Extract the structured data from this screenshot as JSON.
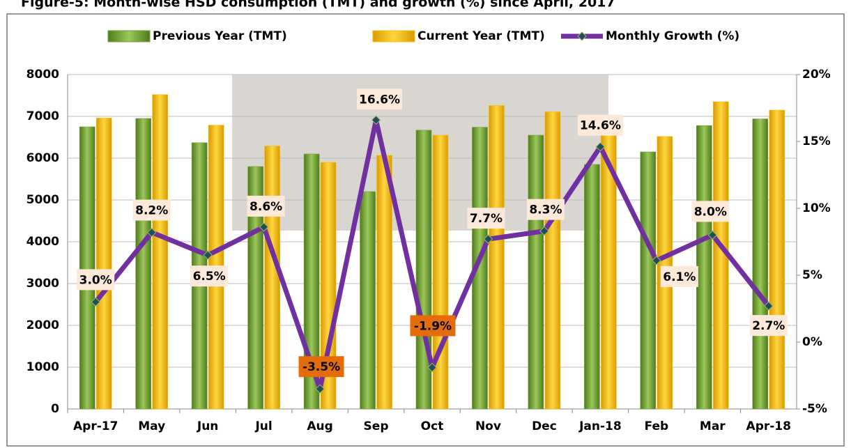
{
  "chart_data": {
    "type": "bar_line",
    "title": "Figure-5: Month-wise HSD consumption (TMT) and growth (%) since April, 2017",
    "categories": [
      "Apr-17",
      "May",
      "Jun",
      "Jul",
      "Aug",
      "Sep",
      "Oct",
      "Nov",
      "Dec",
      "Jan-18",
      "Feb",
      "Mar",
      "Apr-18"
    ],
    "series": [
      {
        "name": "Previous Year (TMT)",
        "color": "#77a33a",
        "values": [
          6750,
          6950,
          6370,
          5800,
          6100,
          5200,
          6670,
          6740,
          6550,
          5850,
          6150,
          6780,
          6940
        ]
      },
      {
        "name": "Current Year (TMT)",
        "color": "#ffc000",
        "values": [
          6960,
          7520,
          6790,
          6290,
          5900,
          6070,
          6550,
          7260,
          7110,
          6690,
          6520,
          7350,
          7150
        ]
      },
      {
        "name": "Monthly Growth (%)",
        "color": "#7030a0",
        "axis": "y2",
        "type": "line",
        "values": [
          3.0,
          8.2,
          6.5,
          8.6,
          -3.5,
          16.6,
          -1.9,
          7.7,
          8.3,
          14.6,
          6.1,
          8.0,
          2.7
        ],
        "value_labels": [
          "3.0%",
          "8.2%",
          "6.5%",
          "8.6%",
          "-3.5%",
          "16.6%",
          "-1.9%",
          "7.7%",
          "8.3%",
          "14.6%",
          "6.1%",
          "8.0%",
          "2.7%"
        ]
      }
    ],
    "ylim": [
      0,
      8000
    ],
    "yticks": [
      0,
      1000,
      2000,
      3000,
      4000,
      5000,
      6000,
      7000,
      8000
    ],
    "y2lim": [
      -5,
      20
    ],
    "y2ticks": [
      {
        "value": -5,
        "label": "-5%"
      },
      {
        "value": 0,
        "label": "0%"
      },
      {
        "value": 5,
        "label": "5%"
      },
      {
        "value": 10,
        "label": "10%"
      },
      {
        "value": 15,
        "label": "15%"
      },
      {
        "value": 20,
        "label": "20%"
      }
    ],
    "legend": "top"
  }
}
